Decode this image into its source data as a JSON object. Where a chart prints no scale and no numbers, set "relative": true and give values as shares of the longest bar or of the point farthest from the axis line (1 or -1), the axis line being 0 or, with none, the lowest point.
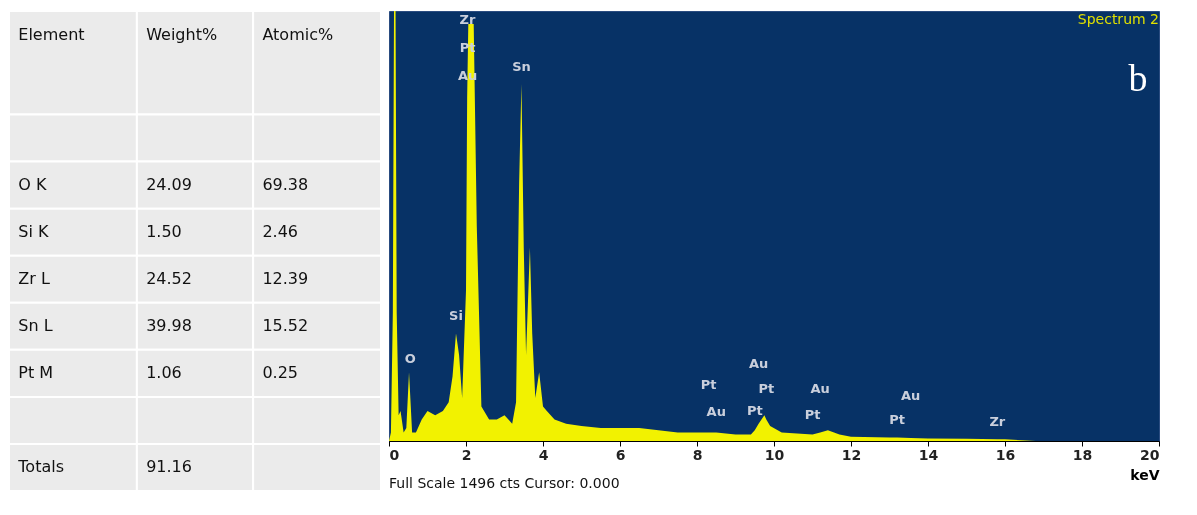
{
  "chart_data": [
    {
      "type": "other",
      "ylabel": "Element",
      "categories": [
        "Weight%",
        "Atomic%"
      ],
      "y_categories": [
        null,
        "O K",
        "Si K",
        "Zr L",
        "Sn L",
        "Pt M",
        null,
        "Totals"
      ],
      "cell_labels": [
        [
          null,
          null
        ],
        [
          "24.09",
          "69.38"
        ],
        [
          "1.50",
          "2.46"
        ],
        [
          "24.52",
          "12.39"
        ],
        [
          "39.98",
          "15.52"
        ],
        [
          "1.06",
          "0.25"
        ],
        [
          null,
          null
        ],
        [
          "91.16",
          null
        ]
      ]
    },
    {
      "type": "area",
      "relative": true,
      "xlabel": "keV",
      "xlim": [
        0,
        20
      ],
      "xticks": [
        0,
        2,
        4,
        6,
        8,
        10,
        12,
        14,
        16,
        18,
        20
      ],
      "x": [
        0,
        0.05,
        0.1,
        0.13,
        0.17,
        0.2,
        0.25,
        0.3,
        0.38,
        0.45,
        0.52,
        0.6,
        0.7,
        0.85,
        1.0,
        1.2,
        1.4,
        1.55,
        1.65,
        1.74,
        1.82,
        1.9,
        2.0,
        2.03,
        2.06,
        2.2,
        2.28,
        2.4,
        2.6,
        2.8,
        3.0,
        3.2,
        3.3,
        3.38,
        3.44,
        3.5,
        3.56,
        3.62,
        3.66,
        3.72,
        3.8,
        3.9,
        4.0,
        4.1,
        4.3,
        4.6,
        5,
        5.5,
        6,
        6.5,
        7,
        7.5,
        8,
        8.3,
        8.5,
        9,
        9.4,
        9.5,
        9.6,
        9.75,
        9.8,
        9.9,
        10.2,
        11,
        11.2,
        11.4,
        11.7,
        12,
        13,
        13.2,
        13.55,
        14,
        15,
        15.8,
        16,
        16.8,
        20
      ],
      "series": [
        {
          "color": "#f2f200",
          "values": [
            0,
            0.02,
            0.3,
            1.0,
            1.0,
            0.3,
            0.06,
            0.07,
            0.02,
            0.03,
            0.16,
            0.02,
            0.02,
            0.05,
            0.07,
            0.06,
            0.07,
            0.09,
            0.15,
            0.25,
            0.2,
            0.1,
            0.35,
            0.8,
            0.97,
            0.97,
            0.5,
            0.08,
            0.05,
            0.05,
            0.06,
            0.04,
            0.09,
            0.6,
            0.83,
            0.45,
            0.2,
            0.35,
            0.45,
            0.25,
            0.1,
            0.16,
            0.08,
            0.07,
            0.05,
            0.04,
            0.035,
            0.03,
            0.03,
            0.03,
            0.025,
            0.02,
            0.02,
            0.02,
            0.02,
            0.015,
            0.015,
            0.025,
            0.04,
            0.06,
            0.05,
            0.035,
            0.02,
            0.015,
            0.02,
            0.025,
            0.015,
            0.01,
            0.008,
            0.008,
            0.007,
            0.006,
            0.005,
            0.004,
            0.004,
            0,
            0
          ]
        }
      ],
      "annotations": [
        "Spectrum 2",
        "b",
        "Full Scale 1496 cts Cursor: 0.000",
        "Zr",
        "Pt",
        "Au",
        "Sn",
        "Si",
        "O",
        "Pt",
        "Au",
        "Pt",
        "Au",
        "Pt",
        "Au",
        "Pt",
        "Au",
        "Pt",
        "Zr"
      ]
    }
  ]
}
